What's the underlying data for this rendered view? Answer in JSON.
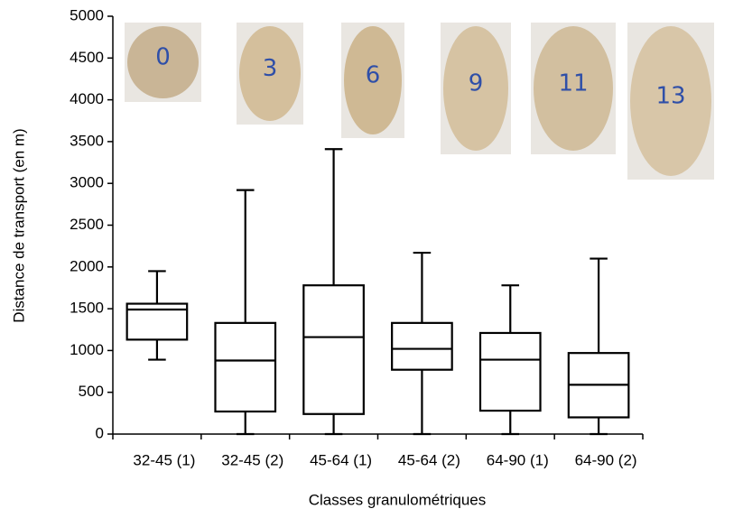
{
  "chart_data": {
    "type": "box",
    "x_label": "Classes granulométriques",
    "y_label": "Distance de transport (en m)",
    "categories": [
      "32-45 (1)",
      "32-45 (2)",
      "45-64 (1)",
      "45-64 (2)",
      "64-90 (1)",
      "64-90 (2)"
    ],
    "boxes": [
      {
        "min": 890,
        "q1": 1130,
        "median": 1490,
        "q3": 1560,
        "max": 1950
      },
      {
        "min": 0,
        "q1": 270,
        "median": 880,
        "q3": 1330,
        "max": 2920
      },
      {
        "min": 0,
        "q1": 240,
        "median": 1160,
        "q3": 1780,
        "max": 3410
      },
      {
        "min": 0,
        "q1": 770,
        "median": 1020,
        "q3": 1330,
        "max": 2170
      },
      {
        "min": 0,
        "q1": 280,
        "median": 890,
        "q3": 1210,
        "max": 1780
      },
      {
        "min": 0,
        "q1": 200,
        "median": 590,
        "q3": 970,
        "max": 2100
      }
    ],
    "pebble_labels": [
      "0",
      "3",
      "6",
      "9",
      "11",
      "13"
    ],
    "color": "#000000",
    "ylim": [
      0,
      5000
    ],
    "yticks": [
      0,
      500,
      1000,
      1500,
      2000,
      2500,
      3000,
      3500,
      4000,
      4500,
      5000
    ]
  }
}
